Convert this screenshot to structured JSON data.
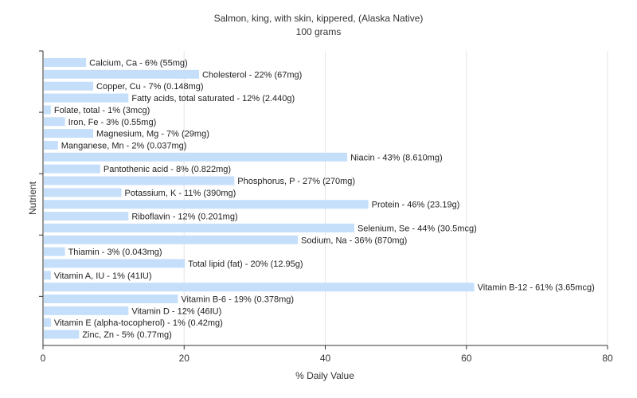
{
  "chart_data": {
    "type": "bar",
    "orientation": "horizontal",
    "title": "Salmon, king, with skin, kippered, (Alaska Native)",
    "subtitle": "100 grams",
    "xlabel": "% Daily Value",
    "ylabel": "Nutrient",
    "xlim": [
      0,
      80
    ],
    "xticks": [
      "0",
      "20",
      "40",
      "60",
      "80"
    ],
    "grid": "vertical",
    "bar_color": "#c5dffb",
    "categories": [
      "Calcium, Ca",
      "Cholesterol",
      "Copper, Cu",
      "Fatty acids, total saturated",
      "Folate, total",
      "Iron, Fe",
      "Magnesium, Mg",
      "Manganese, Mn",
      "Niacin",
      "Pantothenic acid",
      "Phosphorus, P",
      "Potassium, K",
      "Protein",
      "Riboflavin",
      "Selenium, Se",
      "Sodium, Na",
      "Thiamin",
      "Total lipid (fat)",
      "Vitamin A, IU",
      "Vitamin B-12",
      "Vitamin B-6",
      "Vitamin D",
      "Vitamin E (alpha-tocopherol)",
      "Zinc, Zn"
    ],
    "values": [
      6,
      22,
      7,
      12,
      1,
      3,
      7,
      2,
      43,
      8,
      27,
      11,
      46,
      12,
      44,
      36,
      3,
      20,
      1,
      61,
      19,
      12,
      1,
      5
    ],
    "labels": [
      "Calcium, Ca - 6% (55mg)",
      "Cholesterol - 22% (67mg)",
      "Copper, Cu - 7% (0.148mg)",
      "Fatty acids, total saturated - 12% (2.440g)",
      "Folate, total - 1% (3mcg)",
      "Iron, Fe - 3% (0.55mg)",
      "Magnesium, Mg - 7% (29mg)",
      "Manganese, Mn - 2% (0.037mg)",
      "Niacin - 43% (8.610mg)",
      "Pantothenic acid - 8% (0.822mg)",
      "Phosphorus, P - 27% (270mg)",
      "Potassium, K - 11% (390mg)",
      "Protein - 46% (23.19g)",
      "Riboflavin - 12% (0.201mg)",
      "Selenium, Se - 44% (30.5mcg)",
      "Sodium, Na - 36% (870mg)",
      "Thiamin - 3% (0.043mg)",
      "Total lipid (fat) - 20% (12.95g)",
      "Vitamin A, IU - 1% (41IU)",
      "Vitamin B-12 - 61% (3.65mcg)",
      "Vitamin B-6 - 19% (0.378mg)",
      "Vitamin D - 12% (46IU)",
      "Vitamin E (alpha-tocopherol) - 1% (0.42mg)",
      "Zinc, Zn - 5% (0.77mg)"
    ]
  }
}
